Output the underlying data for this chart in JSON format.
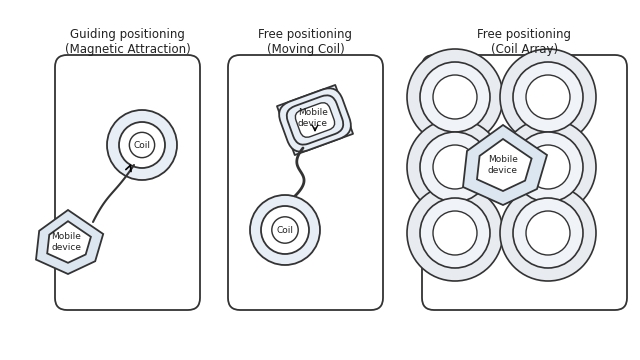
{
  "panel1_title": "Guiding positioning\n(Magnetic Attraction)",
  "panel2_title": "Free positioning\n(Moving Coil)",
  "panel3_title": "Free positioning\n(Coil Array)",
  "bg_color": "#ffffff",
  "edge_color": "#333333",
  "fill_light": "#dce6f0",
  "fill_lighter": "#e8eef6",
  "text_color": "#222222",
  "font_size": 8.5,
  "small_font": 6.5
}
